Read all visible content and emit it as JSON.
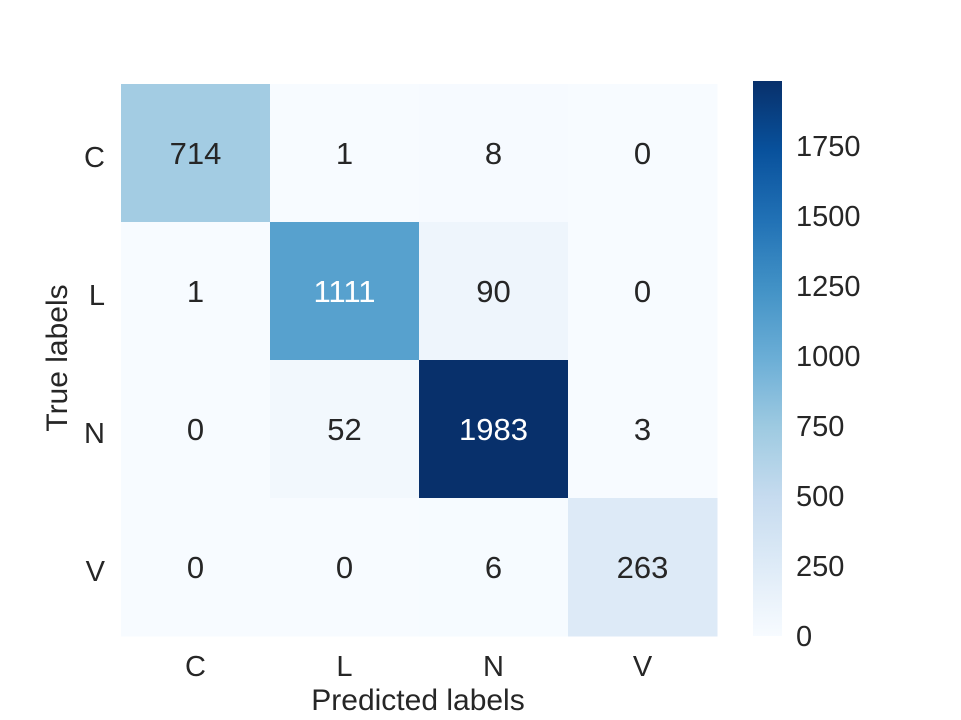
{
  "chart_data": {
    "type": "heatmap",
    "title": "",
    "xlabel": "Predicted labels",
    "ylabel": "True labels",
    "x_categories": [
      "C",
      "L",
      "N",
      "V"
    ],
    "y_categories": [
      "C",
      "L",
      "N",
      "V"
    ],
    "values": [
      [
        714,
        1,
        8,
        0
      ],
      [
        1,
        1111,
        90,
        0
      ],
      [
        0,
        52,
        1983,
        3
      ],
      [
        0,
        0,
        6,
        263
      ]
    ],
    "colormap": "Blues",
    "value_range": [
      0,
      1983
    ],
    "colorbar": {
      "ticks": [
        0,
        250,
        500,
        750,
        1000,
        1250,
        1500,
        1750
      ]
    },
    "grid": false
  }
}
